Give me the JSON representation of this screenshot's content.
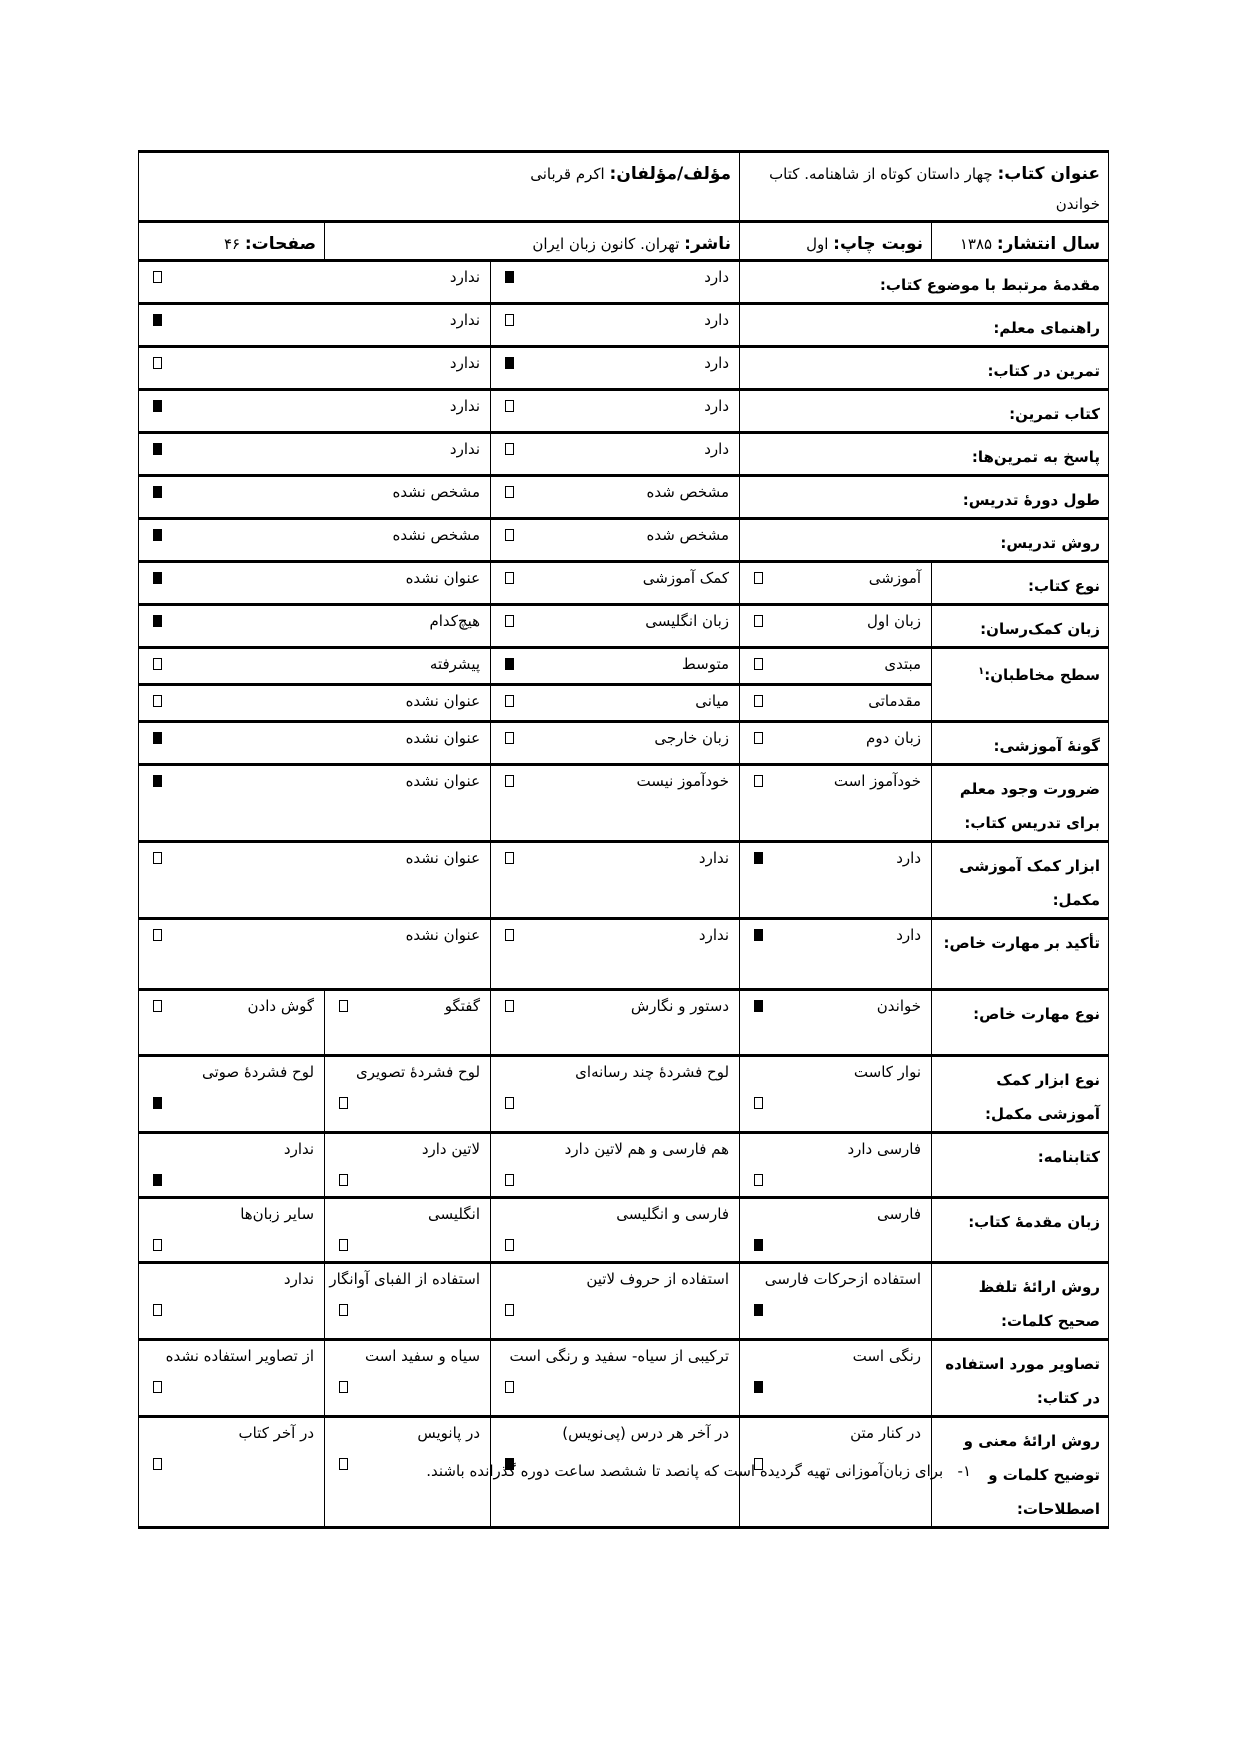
{
  "header": {
    "title_label": "عنوان کتاب:",
    "title_value": "چهار داستان کوتاه از شاهنامه. کتاب خواندن",
    "author_label": "مؤلف/مؤلفان:",
    "author_value": "اکرم قربانی",
    "year_label": "سال انتشار:",
    "year_value": "۱۳۸۵",
    "edition_label": "نوبت چاپ:",
    "edition_value": "اول",
    "publisher_label": "ناشر:",
    "publisher_value": "تهران. کانون زبان ایران",
    "pages_label": "صفحات:",
    "pages_value": "۴۶"
  },
  "rows": [
    {
      "label": "مقدمهٔ مرتبط با موضوع کتاب:",
      "options": [
        {
          "text": "دارد",
          "checked": true
        },
        {
          "text": "ندارد",
          "checked": false
        }
      ]
    },
    {
      "label": "راهنمای معلم:",
      "options": [
        {
          "text": "دارد",
          "checked": false
        },
        {
          "text": "ندارد",
          "checked": true
        }
      ]
    },
    {
      "label": "تمرین در کتاب:",
      "options": [
        {
          "text": "دارد",
          "checked": true
        },
        {
          "text": "ندارد",
          "checked": false
        }
      ]
    },
    {
      "label": "کتاب تمرین:",
      "options": [
        {
          "text": "دارد",
          "checked": false
        },
        {
          "text": "ندارد",
          "checked": true
        }
      ]
    },
    {
      "label": "پاسخ به تمرین‌ها:",
      "options": [
        {
          "text": "دارد",
          "checked": false
        },
        {
          "text": "ندارد",
          "checked": true
        }
      ]
    },
    {
      "label": "طول دورهٔ تدریس:",
      "options": [
        {
          "text": "مشخص شده",
          "checked": false
        },
        {
          "text": "مشخص نشده",
          "checked": true
        }
      ]
    },
    {
      "label": "روش تدریس:",
      "options": [
        {
          "text": "مشخص شده",
          "checked": false
        },
        {
          "text": "مشخص نشده",
          "checked": true
        }
      ]
    },
    {
      "label": "نوع کتاب:",
      "options": [
        {
          "text": "آموزشی",
          "checked": false
        },
        {
          "text": "کمک آموزشی",
          "checked": false
        },
        {
          "text": "عنوان نشده",
          "checked": true
        }
      ]
    },
    {
      "label": "زبان کمک‌رسان:",
      "options": [
        {
          "text": "زبان اول",
          "checked": false
        },
        {
          "text": "زبان انگلیسی",
          "checked": false
        },
        {
          "text": "هیچ‌کدام",
          "checked": true
        }
      ]
    },
    {
      "label": "سطح مخاطبان:",
      "footnote_ref": "۱",
      "options": [
        {
          "text": "مبتدی",
          "checked": false
        },
        {
          "text": "متوسط",
          "checked": true
        },
        {
          "text": "پیشرفته",
          "checked": false
        }
      ]
    },
    {
      "options": [
        {
          "text": "مقدماتی",
          "checked": false
        },
        {
          "text": "میانی",
          "checked": false
        },
        {
          "text": "عنوان نشده",
          "checked": false
        }
      ]
    },
    {
      "label": "گونهٔ آموزشی:",
      "options": [
        {
          "text": "زبان دوم",
          "checked": false
        },
        {
          "text": "زبان خارجی",
          "checked": false
        },
        {
          "text": "عنوان نشده",
          "checked": true
        }
      ]
    },
    {
      "label": "ضرورت وجود معلم برای تدریس کتاب:",
      "options": [
        {
          "text": "خودآموز است",
          "checked": false
        },
        {
          "text": "خودآموز نیست",
          "checked": false
        },
        {
          "text": "عنوان نشده",
          "checked": true
        }
      ]
    },
    {
      "label": "ابزار کمک آموزشی مکمل:",
      "options": [
        {
          "text": "دارد",
          "checked": true
        },
        {
          "text": "ندارد",
          "checked": false
        },
        {
          "text": "عنوان نشده",
          "checked": false
        }
      ]
    },
    {
      "label": "تأکید بر مهارت خاص:",
      "options": [
        {
          "text": "دارد",
          "checked": true
        },
        {
          "text": "ندارد",
          "checked": false
        },
        {
          "text": "عنوان نشده",
          "checked": false
        }
      ]
    },
    {
      "label": "نوع مهارت خاص:",
      "options": [
        {
          "text": "خواندن",
          "checked": true
        },
        {
          "text": "دستور و نگارش",
          "checked": false
        },
        {
          "text": "گفتگو",
          "checked": false
        },
        {
          "text": "گوش دادن",
          "checked": false
        }
      ]
    },
    {
      "label": "نوع ابزار کمک آموزشی مکمل:",
      "options": [
        {
          "text": "نوار کاست",
          "checked": false
        },
        {
          "text": "لوح فشردهٔ چند رسانه‌ای",
          "checked": false
        },
        {
          "text": "لوح فشردهٔ تصویری",
          "checked": false
        },
        {
          "text": "لوح فشردهٔ صوتی",
          "checked": true
        }
      ]
    },
    {
      "label": "کتابنامه:",
      "options": [
        {
          "text": "فارسی دارد",
          "checked": false
        },
        {
          "text": "هم فارسی و هم لاتین دارد",
          "checked": false
        },
        {
          "text": "لاتین دارد",
          "checked": false
        },
        {
          "text": "ندارد",
          "checked": true
        }
      ]
    },
    {
      "label": "زبان مقدمهٔ کتاب:",
      "options": [
        {
          "text": "فارسی",
          "checked": true
        },
        {
          "text": "فارسی و انگلیسی",
          "checked": false
        },
        {
          "text": "انگلیسی",
          "checked": false
        },
        {
          "text": "سایر زبان‌ها",
          "checked": false
        }
      ]
    },
    {
      "label": "روش ارائهٔ تلفظ صحیح کلمات:",
      "options": [
        {
          "text": "استفاده ازحرکات فارسی",
          "checked": true
        },
        {
          "text": "استفاده از حروف لاتین",
          "checked": false
        },
        {
          "text": "استفاده از الفبای آوانگار",
          "checked": false
        },
        {
          "text": "ندارد",
          "checked": false
        }
      ]
    },
    {
      "label": "تصاویر مورد استفاده در کتاب:",
      "options": [
        {
          "text": "رنگی است",
          "checked": true
        },
        {
          "text": "ترکیبی از سیاه- سفید و رنگی است",
          "checked": false
        },
        {
          "text": "سیاه و سفید است",
          "checked": false
        },
        {
          "text": "از تصاویر استفاده نشده",
          "checked": false
        }
      ]
    },
    {
      "label": "روش ارائهٔ معنی و توضیح کلمات و اصطلاحات:",
      "options": [
        {
          "text": "در کنار متن",
          "checked": false
        },
        {
          "text": "در آخر هر درس (پی‌نویس)",
          "checked": true
        },
        {
          "text": "در پانویس",
          "checked": false
        },
        {
          "text": "در آخر کتاب",
          "checked": false
        }
      ]
    }
  ],
  "footnote": {
    "marker": "۱-",
    "text": "برای زبان‌آموزانی تهیه گردیده است که پانصد تا ششصد ساعت دوره گذرانده باشند."
  }
}
